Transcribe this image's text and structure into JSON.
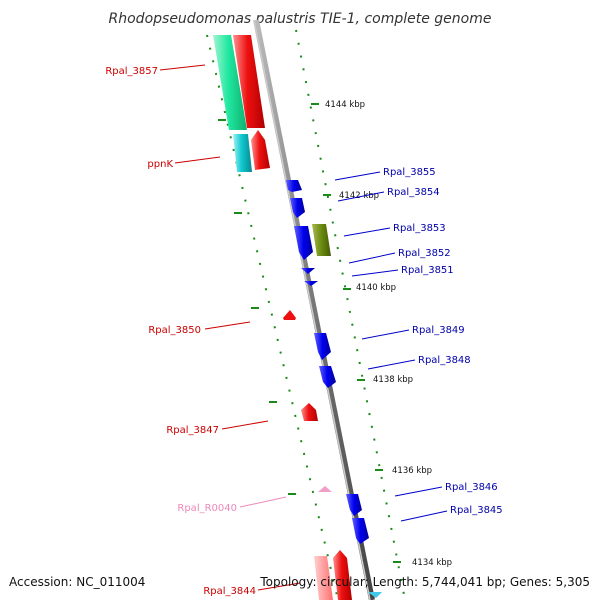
{
  "title": "Rhodopseudomonas palustris TIE-1, complete genome",
  "footer": {
    "accession": "Accession: NC_011004",
    "topology": "Topology: circular; Length: 5,744,041 bp; Genes: 5,305"
  },
  "ticks": [
    {
      "label": "4144 kbp"
    },
    {
      "label": "4142 kbp"
    },
    {
      "label": "4140 kbp"
    },
    {
      "label": "4138 kbp"
    },
    {
      "label": "4136 kbp"
    },
    {
      "label": "4134 kbp"
    }
  ],
  "genes": [
    {
      "id": "Rpal_3857",
      "strand": "reverse",
      "color": "#cc0000"
    },
    {
      "id": "ppnK",
      "strand": "reverse",
      "color": "#cc0000"
    },
    {
      "id": "Rpal_3855",
      "strand": "forward",
      "color": "#0000aa"
    },
    {
      "id": "Rpal_3854",
      "strand": "forward",
      "color": "#0000aa"
    },
    {
      "id": "Rpal_3853",
      "strand": "forward",
      "color": "#0000aa"
    },
    {
      "id": "Rpal_3852",
      "strand": "forward",
      "color": "#0000aa"
    },
    {
      "id": "Rpal_3851",
      "strand": "forward",
      "color": "#0000aa"
    },
    {
      "id": "Rpal_3850",
      "strand": "reverse",
      "color": "#cc0000"
    },
    {
      "id": "Rpal_3849",
      "strand": "forward",
      "color": "#0000aa"
    },
    {
      "id": "Rpal_3848",
      "strand": "forward",
      "color": "#0000aa"
    },
    {
      "id": "Rpal_3847",
      "strand": "reverse",
      "color": "#cc0000"
    },
    {
      "id": "Rpal_R0040",
      "strand": "reverse",
      "color": "#ee88bb"
    },
    {
      "id": "Rpal_3846",
      "strand": "forward",
      "color": "#0000aa"
    },
    {
      "id": "Rpal_3845",
      "strand": "forward",
      "color": "#0000aa"
    },
    {
      "id": "Rpal_3844",
      "strand": "reverse",
      "color": "#cc0000"
    }
  ]
}
